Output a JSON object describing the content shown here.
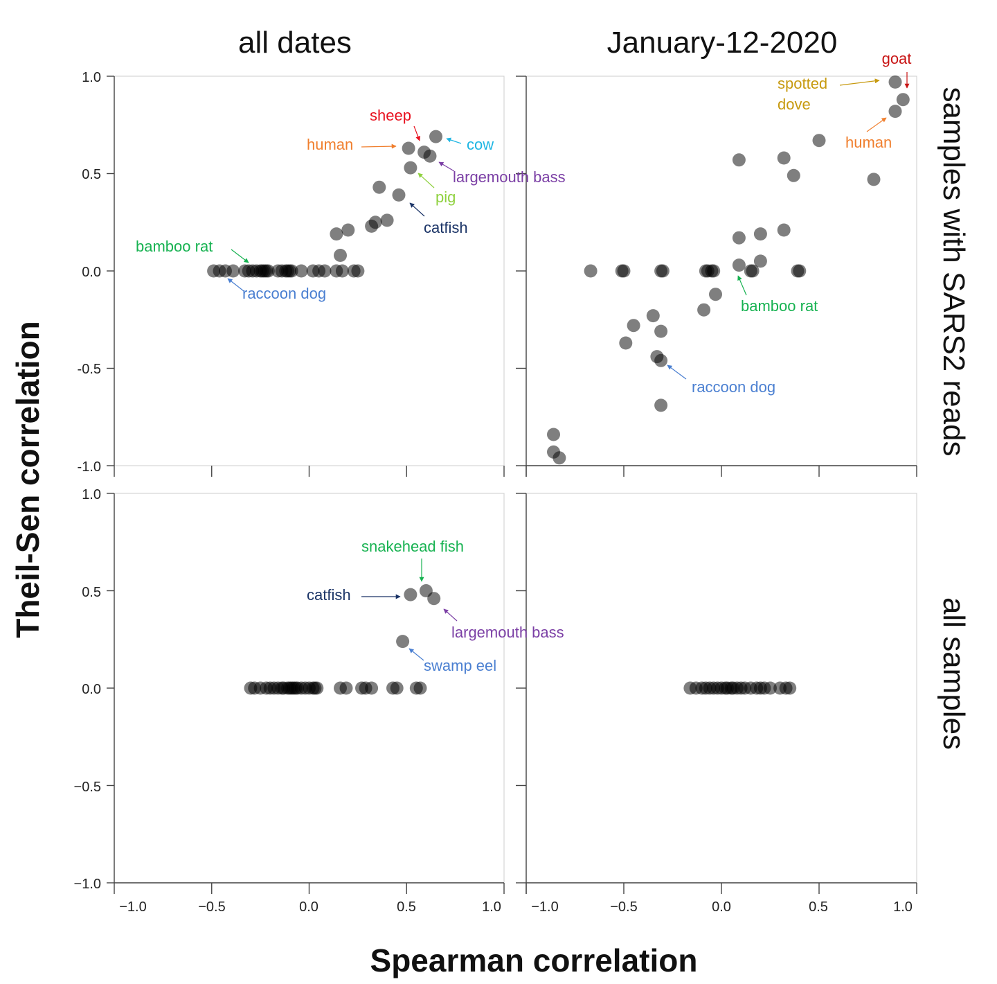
{
  "chart_data": {
    "type": "scatter",
    "xlabel": "Spearman correlation",
    "ylabel": "Theil-Sen correlation",
    "column_titles": [
      "all dates",
      "January-12-2020"
    ],
    "row_titles": [
      "samples with SARS2 reads",
      "all samples"
    ],
    "xlim": [
      -1.0,
      1.0
    ],
    "ylim": [
      -1.0,
      1.0
    ],
    "tick_labels": {
      "top_left_y": [
        "1.0",
        "0.5",
        "0.0",
        "-0.5",
        "-1.0"
      ],
      "bottom_left_y": [
        "1.0",
        "0.5",
        "0.0",
        "−0.5",
        "−1.0"
      ],
      "bottom_x": [
        "−1.0",
        "−0.5",
        "0.0",
        "0.5",
        "1.0"
      ]
    },
    "grid": false,
    "marker_color": "#000000",
    "panels": [
      {
        "row": 0,
        "col": 0,
        "points": [
          [
            -0.49,
            0
          ],
          [
            -0.46,
            0
          ],
          [
            -0.43,
            0
          ],
          [
            -0.39,
            0
          ],
          [
            -0.33,
            0
          ],
          [
            -0.31,
            0
          ],
          [
            -0.29,
            0
          ],
          [
            -0.27,
            0
          ],
          [
            -0.25,
            0
          ],
          [
            -0.24,
            0
          ],
          [
            -0.23,
            0
          ],
          [
            -0.22,
            0
          ],
          [
            -0.21,
            0
          ],
          [
            -0.16,
            0
          ],
          [
            -0.14,
            0
          ],
          [
            -0.12,
            0
          ],
          [
            -0.11,
            0
          ],
          [
            -0.1,
            0
          ],
          [
            -0.09,
            0
          ],
          [
            -0.04,
            0
          ],
          [
            0.02,
            0
          ],
          [
            0.05,
            0
          ],
          [
            0.08,
            0
          ],
          [
            0.14,
            0
          ],
          [
            0.17,
            0
          ],
          [
            0.23,
            0
          ],
          [
            0.25,
            0
          ],
          [
            0.16,
            0.08
          ],
          [
            0.14,
            0.19
          ],
          [
            0.2,
            0.21
          ],
          [
            0.32,
            0.23
          ],
          [
            0.34,
            0.25
          ],
          [
            0.4,
            0.26
          ],
          [
            0.36,
            0.43
          ],
          [
            0.46,
            0.39
          ],
          [
            0.52,
            0.53
          ],
          [
            0.51,
            0.63
          ],
          [
            0.59,
            0.61
          ],
          [
            0.62,
            0.59
          ],
          [
            0.65,
            0.69
          ]
        ],
        "annotations": [
          {
            "text": "sheep",
            "color": "#e8101e"
          },
          {
            "text": "human",
            "color": "#f07f2e"
          },
          {
            "text": "cow",
            "color": "#1fb6e3"
          },
          {
            "text": "largemouth bass",
            "color": "#7b3fa5"
          },
          {
            "text": "pig",
            "color": "#8fd13f"
          },
          {
            "text": "catfish",
            "color": "#1a3366"
          },
          {
            "text": "bamboo rat",
            "color": "#17b251"
          },
          {
            "text": "raccoon dog",
            "color": "#4a7fd1"
          }
        ]
      },
      {
        "row": 0,
        "col": 1,
        "points": [
          [
            -0.67,
            0
          ],
          [
            -0.51,
            0
          ],
          [
            -0.5,
            0
          ],
          [
            -0.31,
            0
          ],
          [
            -0.3,
            0
          ],
          [
            -0.08,
            0
          ],
          [
            -0.07,
            0
          ],
          [
            -0.05,
            0
          ],
          [
            -0.04,
            0
          ],
          [
            0.15,
            0
          ],
          [
            0.16,
            0
          ],
          [
            0.39,
            0
          ],
          [
            0.4,
            0
          ],
          [
            0.09,
            0.03
          ],
          [
            0.2,
            0.05
          ],
          [
            -0.03,
            -0.12
          ],
          [
            -0.09,
            -0.2
          ],
          [
            -0.35,
            -0.23
          ],
          [
            -0.45,
            -0.28
          ],
          [
            -0.31,
            -0.31
          ],
          [
            -0.49,
            -0.37
          ],
          [
            -0.33,
            -0.44
          ],
          [
            -0.31,
            -0.46
          ],
          [
            -0.31,
            -0.69
          ],
          [
            -0.86,
            -0.84
          ],
          [
            -0.86,
            -0.93
          ],
          [
            -0.83,
            -0.96
          ],
          [
            0.09,
            0.17
          ],
          [
            0.2,
            0.19
          ],
          [
            0.32,
            0.21
          ],
          [
            0.09,
            0.57
          ],
          [
            0.32,
            0.58
          ],
          [
            0.37,
            0.49
          ],
          [
            0.5,
            0.67
          ],
          [
            0.78,
            0.47
          ],
          [
            0.89,
            0.82
          ],
          [
            0.93,
            0.88
          ],
          [
            0.89,
            0.97
          ]
        ],
        "annotations": [
          {
            "text": "goat",
            "color": "#c81414"
          },
          {
            "text": "spotted",
            "color": "#c79a10"
          },
          {
            "text": "dove",
            "color": "#c79a10"
          },
          {
            "text": "human",
            "color": "#f07f2e"
          },
          {
            "text": "bamboo rat",
            "color": "#17b251"
          },
          {
            "text": "raccoon dog",
            "color": "#4a7fd1"
          }
        ]
      },
      {
        "row": 1,
        "col": 0,
        "points": [
          [
            -0.3,
            0
          ],
          [
            -0.28,
            0
          ],
          [
            -0.25,
            0
          ],
          [
            -0.22,
            0
          ],
          [
            -0.2,
            0
          ],
          [
            -0.18,
            0
          ],
          [
            -0.16,
            0
          ],
          [
            -0.14,
            0
          ],
          [
            -0.13,
            0
          ],
          [
            -0.11,
            0
          ],
          [
            -0.1,
            0
          ],
          [
            -0.09,
            0
          ],
          [
            -0.08,
            0
          ],
          [
            -0.07,
            0
          ],
          [
            -0.06,
            0
          ],
          [
            -0.04,
            0
          ],
          [
            -0.02,
            0
          ],
          [
            0.0,
            0
          ],
          [
            0.02,
            0
          ],
          [
            0.03,
            0
          ],
          [
            0.04,
            0
          ],
          [
            0.16,
            0
          ],
          [
            0.19,
            0
          ],
          [
            0.27,
            0
          ],
          [
            0.29,
            0
          ],
          [
            0.32,
            0
          ],
          [
            0.43,
            0
          ],
          [
            0.45,
            0
          ],
          [
            0.55,
            0
          ],
          [
            0.57,
            0
          ],
          [
            0.48,
            0.24
          ],
          [
            0.52,
            0.48
          ],
          [
            0.6,
            0.5
          ],
          [
            0.64,
            0.46
          ]
        ],
        "annotations": [
          {
            "text": "snakehead fish",
            "color": "#17b251"
          },
          {
            "text": "catfish",
            "color": "#1a3366"
          },
          {
            "text": "largemouth bass",
            "color": "#7b3fa5"
          },
          {
            "text": "swamp eel",
            "color": "#4a7fd1"
          }
        ]
      },
      {
        "row": 1,
        "col": 1,
        "points": [
          [
            -0.16,
            0
          ],
          [
            -0.13,
            0
          ],
          [
            -0.1,
            0
          ],
          [
            -0.08,
            0
          ],
          [
            -0.06,
            0
          ],
          [
            -0.04,
            0
          ],
          [
            -0.02,
            0
          ],
          [
            0.0,
            0
          ],
          [
            0.02,
            0
          ],
          [
            0.03,
            0
          ],
          [
            0.05,
            0
          ],
          [
            0.06,
            0
          ],
          [
            0.08,
            0
          ],
          [
            0.1,
            0
          ],
          [
            0.12,
            0
          ],
          [
            0.15,
            0
          ],
          [
            0.18,
            0
          ],
          [
            0.2,
            0
          ],
          [
            0.22,
            0
          ],
          [
            0.25,
            0
          ],
          [
            0.3,
            0
          ],
          [
            0.33,
            0
          ],
          [
            0.35,
            0
          ]
        ],
        "annotations": []
      }
    ]
  }
}
